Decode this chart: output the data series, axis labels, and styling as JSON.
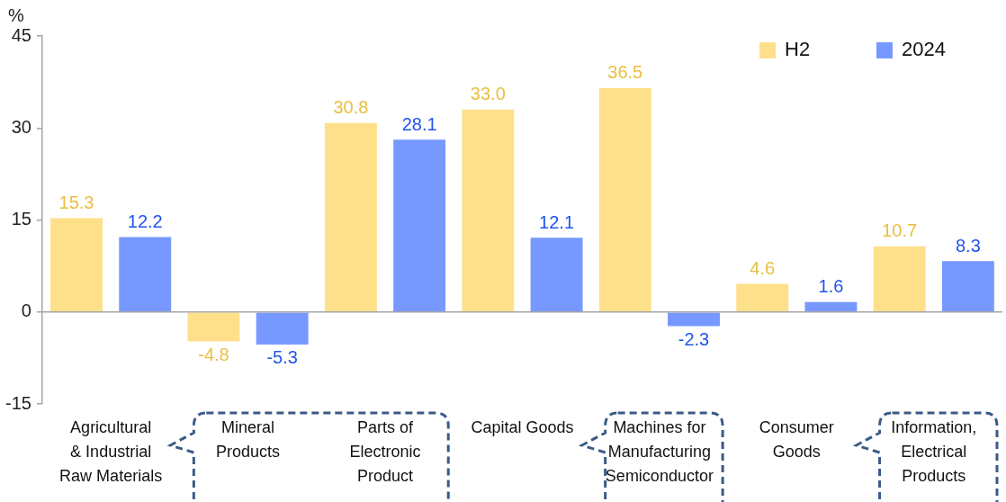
{
  "chart_data": {
    "type": "bar",
    "ylabel": "%",
    "categories": [
      "Agricultural & Industrial Raw Materials",
      "Mineral Products",
      "Parts of Electronic Product",
      "Capital Goods",
      "Machines for Manufacturing Semiconductor",
      "Consumer Goods",
      "Information, Electrical Products"
    ],
    "series": [
      {
        "name": "H2",
        "color": "#fee08b",
        "values": [
          15.3,
          -4.8,
          30.8,
          33.0,
          36.5,
          4.6,
          10.7
        ],
        "value_labels": [
          "15.3",
          "-4.8",
          "30.8",
          "33.0",
          "36.5",
          "4.6",
          "10.7"
        ]
      },
      {
        "name": "2024",
        "color": "#7799ff",
        "values": [
          12.2,
          -5.3,
          28.1,
          12.1,
          -2.3,
          1.6,
          8.3
        ],
        "value_labels": [
          "12.2",
          "-5.3",
          "28.1",
          "12.1",
          "-2.3",
          "1.6",
          "8.3"
        ]
      }
    ],
    "ylim": [
      -15,
      45
    ],
    "yticks": [
      -15,
      0,
      15,
      30,
      45
    ],
    "legend": "top right"
  }
}
